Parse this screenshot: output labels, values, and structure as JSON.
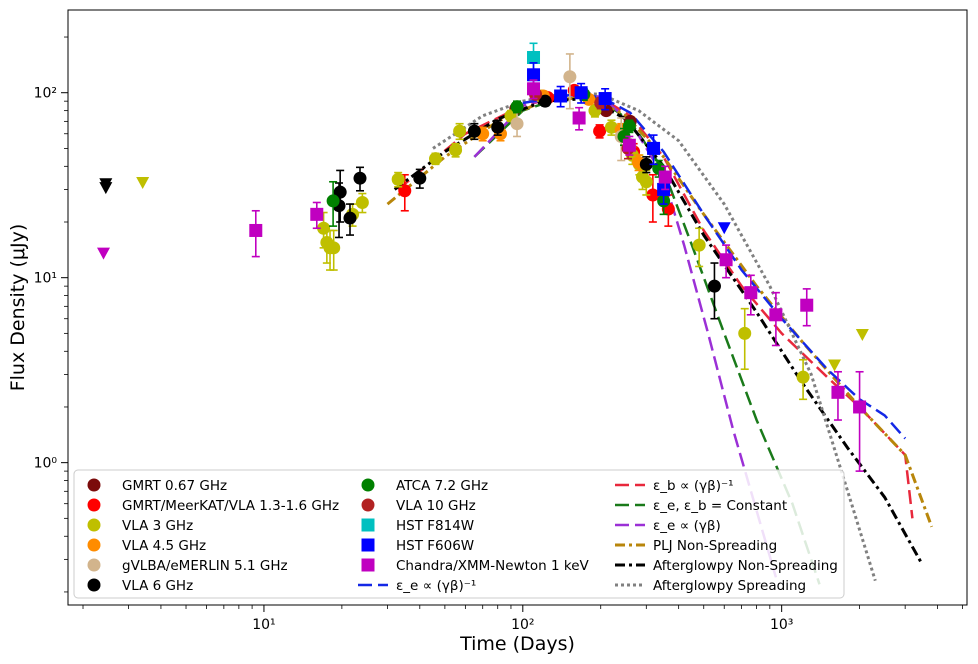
{
  "chart_data": {
    "type": "scatter",
    "xlabel": "Time (Days)",
    "ylabel": "Flux Density (μJy)",
    "xscale": "log",
    "yscale": "log",
    "xlim": [
      1.75,
      5200
    ],
    "ylim": [
      0.17,
      280
    ],
    "x_ticks": [
      {
        "value": 10,
        "label": "10¹"
      },
      {
        "value": 100,
        "label": "10²"
      },
      {
        "value": 1000,
        "label": "10³"
      }
    ],
    "y_ticks": [
      {
        "value": 1,
        "label": "10⁰"
      },
      {
        "value": 10,
        "label": "10¹"
      },
      {
        "value": 100,
        "label": "10²"
      }
    ],
    "legend_position": "bottom",
    "series": [
      {
        "name": "GMRT 0.67 GHz",
        "marker": "circle",
        "color": "#7b0b0b",
        "points": [
          [
            94,
            82
          ],
          [
            210,
            80
          ],
          [
            260,
            70
          ]
        ]
      },
      {
        "name": "GMRT/MeerKAT/VLA 1.3-1.6 GHz",
        "marker": "circle",
        "color": "#ff0000",
        "points": [
          [
            35,
            29.5,
            6.5
          ],
          [
            158,
            103,
            6
          ],
          [
            198,
            62,
            5
          ],
          [
            268,
            48,
            5
          ],
          [
            318,
            28,
            8
          ],
          [
            365,
            23.5,
            4.5
          ],
          [
            125,
            94,
            5
          ]
        ]
      },
      {
        "name": "VLA 3 GHz",
        "marker": "circle",
        "color": "#bfbf00",
        "points": [
          [
            17,
            18.5,
            4
          ],
          [
            17.5,
            15.5,
            3.5
          ],
          [
            18,
            14.5,
            3.5
          ],
          [
            18.6,
            14.5,
            3.5
          ],
          [
            22,
            22,
            3
          ],
          [
            24,
            25.5,
            3
          ],
          [
            33,
            34,
            3
          ],
          [
            46,
            44,
            3
          ],
          [
            55,
            49,
            4
          ],
          [
            57,
            62,
            6
          ],
          [
            90,
            75,
            5
          ],
          [
            118,
            96,
            6
          ],
          [
            190,
            80,
            6
          ],
          [
            220,
            65,
            6
          ],
          [
            265,
            46,
            5
          ],
          [
            282,
            41,
            5
          ],
          [
            290,
            35,
            5
          ],
          [
            300,
            33,
            5
          ],
          [
            480,
            15,
            3.5
          ],
          [
            720,
            5,
            1.8
          ],
          [
            1210,
            2.9,
            0.7
          ]
        ],
        "upper_limits": [
          [
            3.4,
            32.5
          ],
          [
            1600,
            3.35
          ],
          [
            2050,
            4.9
          ]
        ]
      },
      {
        "name": "VLA 4.5 GHz",
        "marker": "circle",
        "color": "#ff8c00",
        "points": [
          [
            70,
            60,
            5
          ],
          [
            82,
            60,
            5
          ],
          [
            120,
            96,
            6
          ],
          [
            180,
            92,
            5
          ],
          [
            240,
            63,
            5
          ],
          [
            280,
            42,
            4
          ]
        ]
      },
      {
        "name": "gVLBA/eMERLIN 5.1 GHz",
        "marker": "circle",
        "color": "#d2b48c",
        "points": [
          [
            95,
            68,
            10
          ],
          [
            152,
            122,
            40
          ],
          [
            240,
            58,
            15
          ]
        ]
      },
      {
        "name": "VLA 6 GHz",
        "marker": "circle",
        "color": "#000000",
        "points": [
          [
            19.5,
            24.5,
            8
          ],
          [
            19.7,
            29,
            9
          ],
          [
            21.5,
            21,
            4
          ],
          [
            23.5,
            34.5,
            5
          ],
          [
            40,
            34.5,
            4
          ],
          [
            65,
            62,
            6
          ],
          [
            80,
            65,
            6
          ],
          [
            122,
            90,
            5
          ],
          [
            300,
            41,
            4
          ],
          [
            550,
            9,
            3
          ]
        ],
        "upper_limits": [
          [
            2.45,
            32
          ],
          [
            2.45,
            30.5
          ]
        ]
      },
      {
        "name": "ATCA 7.2 GHz",
        "marker": "circle",
        "color": "#008000",
        "points": [
          [
            18.5,
            26,
            7
          ],
          [
            95,
            84,
            6
          ],
          [
            172,
            98,
            7
          ],
          [
            246,
            58,
            6
          ],
          [
            258,
            66,
            5
          ],
          [
            335,
            39,
            4
          ],
          [
            350,
            26,
            4
          ]
        ]
      },
      {
        "name": "VLA 10 GHz",
        "marker": "circle",
        "color": "#b22222",
        "points": [
          [
            112,
            98,
            6
          ],
          [
            200,
            88,
            6
          ],
          [
            255,
            50,
            6
          ]
        ]
      },
      {
        "name": "HST F814W",
        "marker": "square",
        "color": "#00c0c0",
        "points": [
          [
            110,
            155,
            30
          ]
        ]
      },
      {
        "name": "HST F606W",
        "marker": "square",
        "color": "#0000ff",
        "points": [
          [
            110,
            125,
            20
          ],
          [
            140,
            96,
            12
          ],
          [
            168,
            100,
            12
          ],
          [
            208,
            93,
            12
          ],
          [
            320,
            50,
            9
          ],
          [
            350,
            30,
            5
          ]
        ],
        "upper_limits": [
          [
            600,
            18.5
          ]
        ]
      },
      {
        "name": "Chandra/XMM-Newton 1 keV",
        "marker": "square",
        "color": "#c000c0",
        "points": [
          [
            9.3,
            18,
            5
          ],
          [
            16,
            22,
            3.5
          ],
          [
            110,
            105,
            12
          ],
          [
            165,
            73,
            10
          ],
          [
            258,
            52,
            6
          ],
          [
            355,
            35,
            5
          ],
          [
            610,
            12.5,
            2.5
          ],
          [
            760,
            8.3,
            2
          ],
          [
            950,
            6.3,
            2
          ],
          [
            1250,
            7.1,
            1.6
          ],
          [
            1650,
            2.4,
            0.7
          ],
          [
            2000,
            2.0,
            1.1
          ]
        ],
        "upper_limits": [
          [
            2.4,
            13.5
          ]
        ]
      }
    ],
    "models": [
      {
        "name": "ε_b ∝ (γβ)⁻¹",
        "style": "dashed",
        "color": "#e8283c",
        "points": [
          [
            33,
            30
          ],
          [
            60,
            60
          ],
          [
            100,
            85
          ],
          [
            150,
            98
          ],
          [
            200,
            94
          ],
          [
            260,
            75
          ],
          [
            350,
            45
          ],
          [
            500,
            18
          ],
          [
            700,
            9
          ],
          [
            1000,
            5
          ],
          [
            1500,
            2.9
          ],
          [
            2000,
            2
          ],
          [
            3000,
            1.1
          ],
          [
            3200,
            0.5
          ]
        ]
      },
      {
        "name": "ε_e, ε_b = Constant",
        "style": "dashed",
        "color": "#1a7a1a",
        "points": [
          [
            65,
            45
          ],
          [
            100,
            80
          ],
          [
            150,
            97
          ],
          [
            200,
            92
          ],
          [
            260,
            70
          ],
          [
            350,
            38
          ],
          [
            450,
            15
          ],
          [
            600,
            5
          ],
          [
            800,
            1.7
          ],
          [
            1100,
            0.6
          ],
          [
            1400,
            0.22
          ]
        ]
      },
      {
        "name": "ε_e ∝ (γβ)",
        "style": "dashed",
        "color": "#9b30d6",
        "points": [
          [
            65,
            45
          ],
          [
            100,
            85
          ],
          [
            150,
            100
          ],
          [
            200,
            95
          ],
          [
            260,
            70
          ],
          [
            350,
            35
          ],
          [
            420,
            15
          ],
          [
            520,
            5
          ],
          [
            650,
            1.5
          ],
          [
            800,
            0.55
          ],
          [
            950,
            0.24
          ]
        ]
      },
      {
        "name": "PLJ Non-Spreading",
        "style": "dashdot",
        "color": "#b8860b",
        "points": [
          [
            30,
            25
          ],
          [
            50,
            45
          ],
          [
            80,
            70
          ],
          [
            120,
            90
          ],
          [
            180,
            95
          ],
          [
            250,
            75
          ],
          [
            350,
            45
          ],
          [
            500,
            22
          ],
          [
            800,
            9
          ],
          [
            1200,
            4.5
          ],
          [
            2000,
            2
          ],
          [
            3000,
            1.1
          ],
          [
            3800,
            0.45
          ]
        ]
      },
      {
        "name": "Afterglowpy Non-Spreading",
        "style": "dashdot",
        "color": "#000000",
        "points": [
          [
            32,
            30
          ],
          [
            50,
            48
          ],
          [
            80,
            72
          ],
          [
            120,
            90
          ],
          [
            180,
            93
          ],
          [
            250,
            72
          ],
          [
            350,
            40
          ],
          [
            500,
            17
          ],
          [
            800,
            6.5
          ],
          [
            1200,
            2.7
          ],
          [
            1800,
            1.2
          ],
          [
            2500,
            0.65
          ],
          [
            3500,
            0.28
          ]
        ]
      },
      {
        "name": "Afterglowpy Spreading",
        "style": "dotted",
        "color": "#808080",
        "points": [
          [
            45,
            50
          ],
          [
            70,
            75
          ],
          [
            100,
            90
          ],
          [
            150,
            100
          ],
          [
            200,
            98
          ],
          [
            280,
            80
          ],
          [
            400,
            55
          ],
          [
            600,
            25
          ],
          [
            900,
            9
          ],
          [
            1300,
            3
          ],
          [
            1800,
            0.7
          ],
          [
            2300,
            0.23
          ]
        ]
      },
      {
        "name": "ε_e ∝ (γβ)⁻¹",
        "style": "dashed",
        "color": "#1428e6",
        "points": [
          [
            100,
            88
          ],
          [
            150,
            97
          ],
          [
            200,
            95
          ],
          [
            260,
            78
          ],
          [
            350,
            48
          ],
          [
            500,
            22
          ],
          [
            700,
            11
          ],
          [
            1000,
            6
          ],
          [
            1500,
            3.2
          ],
          [
            2000,
            2.2
          ],
          [
            2500,
            1.8
          ],
          [
            3000,
            1.35
          ]
        ]
      }
    ],
    "legend": {
      "columns": [
        [
          "GMRT 0.67 GHz",
          "GMRT/MeerKAT/VLA 1.3-1.6 GHz",
          "VLA 3 GHz",
          "VLA 4.5 GHz",
          "gVLBA/eMERLIN 5.1 GHz",
          "VLA 6 GHz"
        ],
        [
          "ATCA 7.2 GHz",
          "VLA 10 GHz",
          "HST F814W",
          "HST F606W",
          "Chandra/XMM-Newton 1 keV",
          "ε_e ∝ (γβ)⁻¹"
        ],
        [
          "ε_b ∝ (γβ)⁻¹",
          "ε_e, ε_b = Constant",
          "ε_e ∝ (γβ)",
          "PLJ Non-Spreading",
          "Afterglowpy Non-Spreading",
          "Afterglowpy Spreading"
        ]
      ]
    }
  }
}
